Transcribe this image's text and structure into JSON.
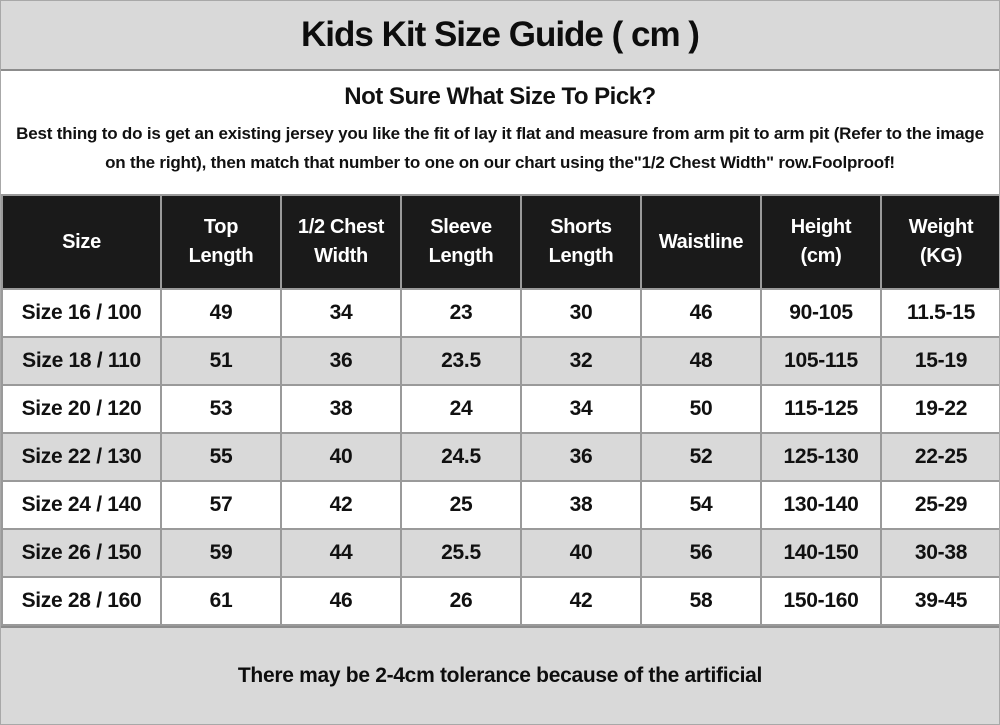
{
  "title": "Kids Kit Size Guide ( cm )",
  "info": {
    "heading": "Not Sure What Size To Pick?",
    "body": "Best thing to do is get an existing jersey you like the fit of lay it flat and measure from arm pit to arm pit (Refer to the image on the right), then match that number to one on our chart using the\"1/2 Chest Width\" row.Foolproof!"
  },
  "table": {
    "columns": [
      "Size",
      "Top\nLength",
      "1/2 Chest\nWidth",
      "Sleeve\nLength",
      "Shorts\nLength",
      "Waistline",
      "Height\n(cm)",
      "Weight\n(KG)"
    ],
    "rows": [
      [
        "Size 16 / 100",
        "49",
        "34",
        "23",
        "30",
        "46",
        "90-105",
        "11.5-15"
      ],
      [
        "Size 18 / 110",
        "51",
        "36",
        "23.5",
        "32",
        "48",
        "105-115",
        "15-19"
      ],
      [
        "Size 20 / 120",
        "53",
        "38",
        "24",
        "34",
        "50",
        "115-125",
        "19-22"
      ],
      [
        "Size 22 / 130",
        "55",
        "40",
        "24.5",
        "36",
        "52",
        "125-130",
        "22-25"
      ],
      [
        "Size 24 / 140",
        "57",
        "42",
        "25",
        "38",
        "54",
        "130-140",
        "25-29"
      ],
      [
        "Size 26 / 150",
        "59",
        "44",
        "25.5",
        "40",
        "56",
        "140-150",
        "30-38"
      ],
      [
        "Size 28 / 160",
        "61",
        "46",
        "26",
        "42",
        "58",
        "150-160",
        "39-45"
      ]
    ]
  },
  "footer": {
    "note": "There may be 2-4cm tolerance because of the artificial"
  },
  "colors": {
    "band_bg": "#d9d9d9",
    "header_bg": "#1a1a1a",
    "row_alt_bg": "#d9d9d9",
    "grid_line": "#9a9a9a"
  }
}
